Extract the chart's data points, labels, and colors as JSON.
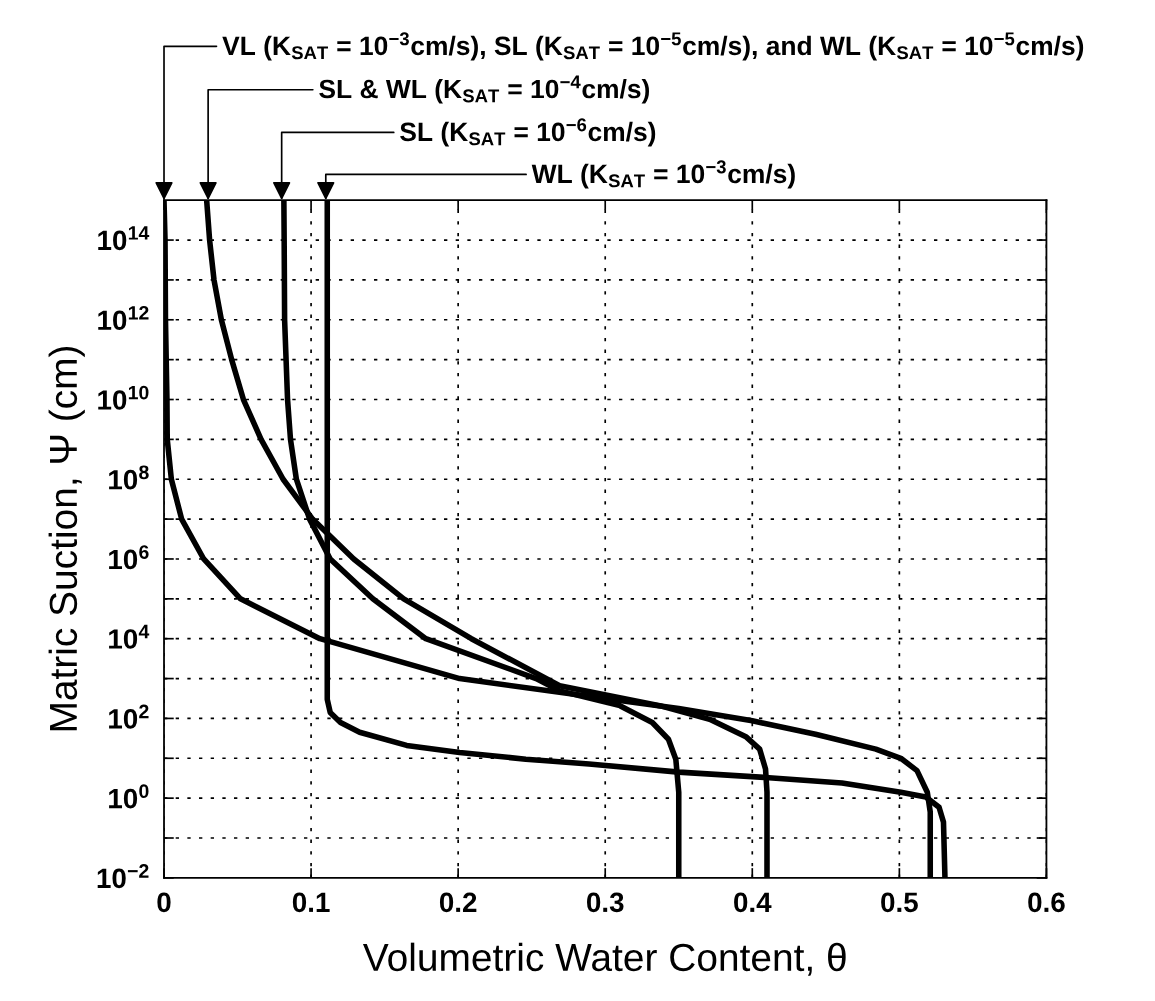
{
  "chart_data": {
    "type": "line",
    "xlabel": "Volumetric Water Content, θ",
    "ylabel": "Matric Suction, Ψ (cm)",
    "log": "y",
    "grid": true,
    "marker": "none",
    "line_style": "solid",
    "xlim": [
      0,
      0.6
    ],
    "xticks": [
      0,
      0.1,
      0.2,
      0.3,
      0.4,
      0.5,
      0.6
    ],
    "ylim": [
      0.01,
      1000000000000000.0
    ],
    "yticks": [
      {
        "value": 0.01,
        "label": "10$^{−2}$"
      },
      {
        "value": 0.1,
        "label": null
      },
      {
        "value": 1,
        "label": "10$^{0}$"
      },
      {
        "value": 10,
        "label": null
      },
      {
        "value": 100,
        "label": "10$^{2}$"
      },
      {
        "value": 1000,
        "label": null
      },
      {
        "value": 10000,
        "label": "10$^{4}$"
      },
      {
        "value": 100000,
        "label": null
      },
      {
        "value": 1000000,
        "label": "10$^{6}$"
      },
      {
        "value": 10000000,
        "label": null
      },
      {
        "value": 100000000,
        "label": "10$^{8}$"
      },
      {
        "value": 1000000000,
        "label": null
      },
      {
        "value": 10000000000,
        "label": "10$^{10}$"
      },
      {
        "value": 100000000000,
        "label": null
      },
      {
        "value": 1000000000000,
        "label": "10$^{12}$"
      },
      {
        "value": 10000000000000,
        "label": null
      },
      {
        "value": 100000000000000,
        "label": "10$^{14}$"
      }
    ],
    "series": [
      {
        "color": "#000000",
        "x": [
          0,
          0.0007,
          0.001,
          0.002,
          0.0022,
          0.005,
          0.012,
          0.027,
          0.052,
          0.106,
          0.201,
          0.29,
          0.35,
          0.4,
          0.443,
          0.484,
          0.501,
          0.512,
          0.519,
          0.521,
          0.521
        ],
        "values": [
          1000000000000000.0,
          100000000000000.0,
          1000000000000.0,
          10000000000.0,
          1000000000.0,
          100000000.0,
          10000000.0,
          1000000.0,
          100000.0,
          10000.0,
          1000.0,
          355,
          178,
          87,
          40,
          17,
          10,
          4.9,
          1.41,
          0.45,
          0.01
        ]
      },
      {
        "color": "#000000",
        "x": [
          0.111,
          0.111,
          0.111,
          0.111,
          0.113,
          0.12,
          0.133,
          0.165,
          0.201,
          0.246,
          0.289,
          0.35,
          0.409,
          0.461,
          0.501,
          0.518,
          0.527,
          0.53,
          0.531
        ],
        "values": [
          1000000000000000.0,
          1000000.0,
          1000.0,
          302,
          141,
          79,
          45,
          21,
          14,
          9.5,
          7.2,
          4.5,
          3.3,
          2.4,
          1.41,
          1.07,
          0.59,
          0.25,
          0.01
        ]
      },
      {
        "color": "#000000",
        "x": [
          0.029,
          0.031,
          0.034,
          0.039,
          0.046,
          0.054,
          0.066,
          0.081,
          0.101,
          0.129,
          0.163,
          0.209,
          0.269,
          0.337,
          0.371,
          0.396,
          0.405,
          0.409,
          0.41,
          0.41
        ],
        "values": [
          1000000000000000.0,
          100000000000000.0,
          10000000000000.0,
          1000000000000.0,
          100000000000.0,
          10000000000.0,
          1000000000.0,
          100000000.0,
          10000000.0,
          1000000.0,
          100000.0,
          10000.0,
          661,
          209,
          95,
          34,
          17,
          5.4,
          1.41,
          0.01
        ]
      },
      {
        "color": "#000000",
        "x": [
          0.0815,
          0.0817,
          0.082,
          0.083,
          0.084,
          0.086,
          0.09,
          0.099,
          0.113,
          0.142,
          0.178,
          0.253,
          0.269,
          0.31,
          0.332,
          0.343,
          0.348,
          0.35,
          0.35
        ],
        "values": [
          1000000000000000.0,
          100000000000000.0,
          1000000000000.0,
          100000000000.0,
          10000000000.0,
          1000000000.0,
          100000000.0,
          10000000.0,
          1000000.0,
          100000.0,
          10000.0,
          1000.0,
          490,
          209,
          79,
          30,
          9.5,
          1.41,
          0.01
        ]
      }
    ],
    "annotations": [
      "VL (K$_{SAT}$ = 10$^{−3}$cm/s), SL (K$_{SAT}$ = 10$^{−5}$cm/s), and WL (K$_{SAT}$ = 10$^{−5}$cm/s)",
      {
        "text": "SL & WL (K$_{SAT}$ = 10$^{−4}$cm/s)",
        "x": 0.03,
        "y": 1000000000000000.0
      },
      {
        "text": "SL (K$_{SAT}$ = 10$^{−6}$cm/s)",
        "x": 0.08,
        "y": 1000000000000000.0
      },
      {
        "text": "WL (K$_{SAT}$ = 10$^{−3}$cm/s)",
        "x": 0.11,
        "y": 1000000000000000.0
      }
    ]
  }
}
